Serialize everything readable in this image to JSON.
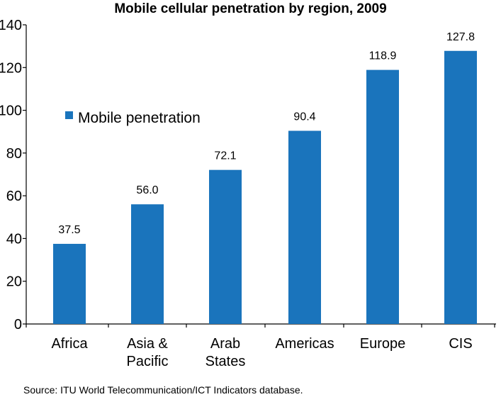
{
  "chart_data": {
    "type": "bar",
    "title": "Mobile cellular penetration by region, 2009",
    "xlabel": "",
    "ylabel": "",
    "ylim": [
      0,
      140
    ],
    "yticks": [
      0,
      20,
      40,
      60,
      80,
      100,
      120,
      140
    ],
    "categories": [
      [
        "Africa"
      ],
      [
        "Asia &",
        "Pacific"
      ],
      [
        "Arab",
        "States"
      ],
      [
        "Americas"
      ],
      [
        "Europe"
      ],
      [
        "CIS"
      ]
    ],
    "series": [
      {
        "name": "Mobile penetration",
        "values": [
          37.5,
          56.0,
          72.1,
          90.4,
          118.9,
          127.8
        ],
        "labels": [
          "37.5",
          "56.0",
          "72.1",
          "90.4",
          "118.9",
          "127.8"
        ],
        "color": "#1a74bc"
      }
    ],
    "grid": false,
    "legend": "top-left"
  },
  "source": "Source: ITU World Telecommunication/ICT Indicators database."
}
